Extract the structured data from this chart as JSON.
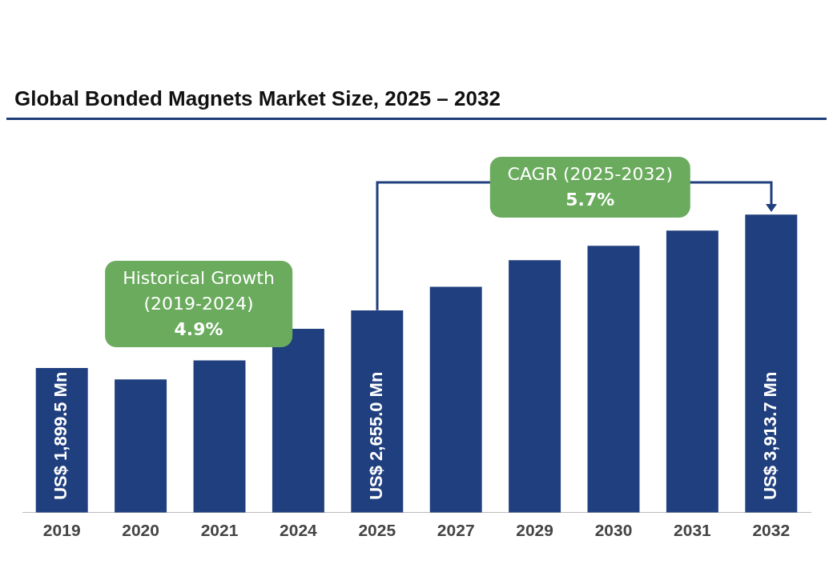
{
  "chart_data": {
    "type": "bar",
    "title": "Global Bonded Magnets Market Size, 2025 – 2032",
    "categories": [
      "2019",
      "2020",
      "2021",
      "2024",
      "2025",
      "2027",
      "2029",
      "2030",
      "2031",
      "2032"
    ],
    "values": [
      1899.5,
      1750,
      2000,
      2415,
      2655.0,
      2966,
      3314,
      3503,
      3703,
      3913.7
    ],
    "value_labels": [
      "US$ 1,899.5 Mn",
      null,
      null,
      null,
      "US$ 2,655.0 Mn",
      null,
      null,
      null,
      null,
      "US$ 3,913.7 Mn"
    ],
    "color": "#203f7e",
    "legend": false,
    "annotations": [
      "Historical Growth\n(2019-2024)\n4.9%",
      "CAGR (2025-2032)\n5.7%"
    ]
  }
}
